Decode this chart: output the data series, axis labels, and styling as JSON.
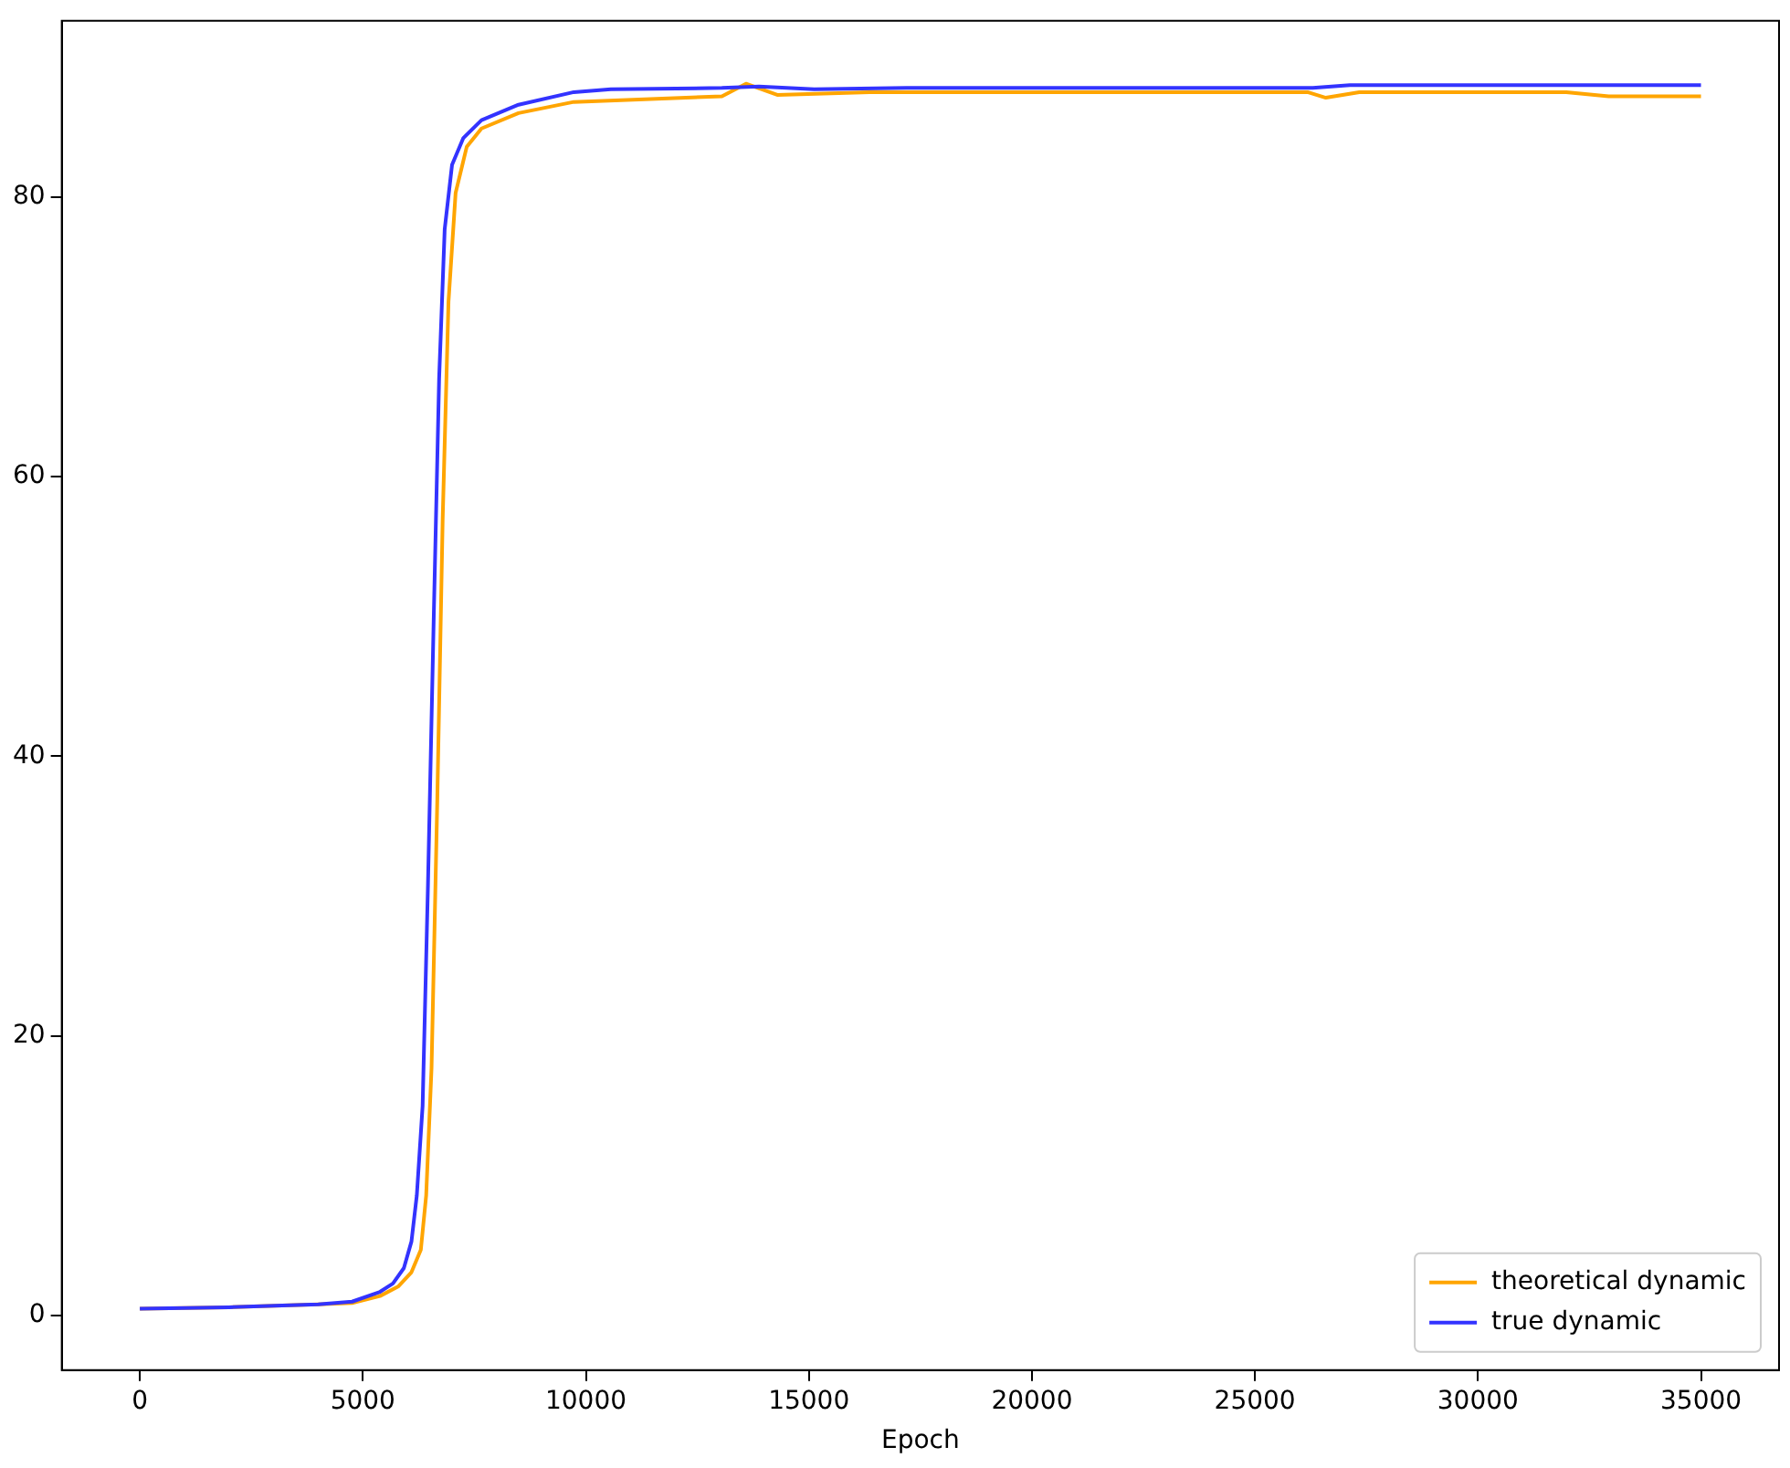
{
  "chart_data": {
    "type": "line",
    "xlabel": "Epoch",
    "xlim": [
      -1750,
      36750
    ],
    "ylim": [
      -3.9,
      92.6
    ],
    "xticks": [
      0,
      5000,
      10000,
      15000,
      20000,
      25000,
      30000,
      35000
    ],
    "yticks": [
      0,
      20,
      40,
      60,
      80
    ],
    "grid": false,
    "legend": "bottom right",
    "marker": "none",
    "line_style": "solid",
    "series": [
      {
        "name": "theoretical dynamic",
        "color": "#ffa500",
        "x": [
          0,
          2000,
          4000,
          4760,
          5385,
          5800,
          6090,
          6300,
          6420,
          6540,
          6670,
          6790,
          6920,
          7080,
          7330,
          7660,
          8490,
          9730,
          13050,
          13590,
          14290,
          16360,
          26180,
          26590,
          27340,
          31980,
          32930,
          35000
        ],
        "values": [
          0.5,
          0.6,
          0.8,
          0.9,
          1.4,
          2.1,
          3.1,
          4.7,
          8.6,
          17.7,
          37,
          57,
          72.5,
          80.3,
          83.6,
          84.9,
          86,
          86.8,
          87.2,
          88.1,
          87.3,
          87.5,
          87.5,
          87.1,
          87.5,
          87.5,
          87.2,
          87.2
        ]
      },
      {
        "name": "true dynamic",
        "color": "#3333ff",
        "x": [
          0,
          2000,
          4000,
          4760,
          5385,
          5675,
          5920,
          6090,
          6210,
          6340,
          6460,
          6590,
          6710,
          6835,
          7000,
          7250,
          7660,
          8490,
          9730,
          10560,
          13050,
          13880,
          15120,
          17190,
          26300,
          27130,
          35000
        ],
        "values": [
          0.5,
          0.6,
          0.8,
          1.0,
          1.7,
          2.3,
          3.4,
          5.3,
          8.6,
          15,
          30.8,
          50,
          67,
          77.7,
          82.3,
          84.2,
          85.5,
          86.6,
          87.5,
          87.7,
          87.8,
          87.9,
          87.7,
          87.8,
          87.8,
          88,
          88
        ]
      }
    ]
  }
}
